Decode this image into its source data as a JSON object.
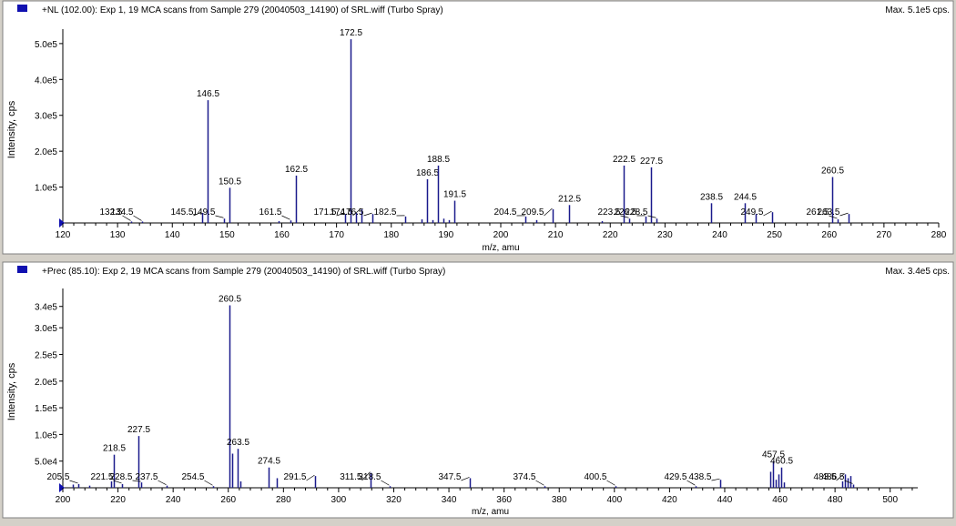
{
  "panels": [
    {
      "title": "+NL (102.00): Exp 1, 19 MCA scans from Sample 279 (20040503_14190) of SRL.wiff (Turbo Spray)",
      "max_label": "Max. 5.1e5 cps."
    },
    {
      "title": "+Prec (85.10): Exp 2, 19 MCA scans from Sample 279 (20040503_14190) of SRL.wiff (Turbo Spray)",
      "max_label": "Max. 3.4e5 cps."
    }
  ],
  "colors": {
    "bar": "#1a1a8c",
    "frame_bg": "#ffffff",
    "window_bg": "#d4d0c8",
    "legend_marker": "#1010b0"
  },
  "chart_data": [
    {
      "type": "bar",
      "title": "+NL (102.00): Exp 1, 19 MCA scans from Sample 279 (20040503_14190) of SRL.wiff (Turbo Spray)",
      "xlabel": "m/z, amu",
      "ylabel": "Intensity, cps",
      "xlim": [
        120,
        280
      ],
      "ylim": [
        0,
        520000
      ],
      "x_ticks": [
        120,
        130,
        140,
        150,
        160,
        170,
        180,
        190,
        200,
        210,
        220,
        230,
        240,
        250,
        260,
        270,
        280
      ],
      "y_ticks": [
        {
          "value": 100000,
          "label": "1.0e5"
        },
        {
          "value": 200000,
          "label": "2.0e5"
        },
        {
          "value": 300000,
          "label": "3.0e5"
        },
        {
          "value": 400000,
          "label": "4.0e5"
        },
        {
          "value": 500000,
          "label": "5.0e5"
        }
      ],
      "peaks": [
        {
          "x": 132.5,
          "y": 4000,
          "label": "132.5"
        },
        {
          "x": 134.5,
          "y": 4000,
          "label": "134.5"
        },
        {
          "x": 145.5,
          "y": 28000,
          "label": "145.5"
        },
        {
          "x": 146.5,
          "y": 342000,
          "label": "146.5"
        },
        {
          "x": 149.5,
          "y": 12000,
          "label": "149.5"
        },
        {
          "x": 150.5,
          "y": 98000,
          "label": "150.5"
        },
        {
          "x": 159.5,
          "y": 5000,
          "label": ""
        },
        {
          "x": 161.5,
          "y": 7000,
          "label": "161.5"
        },
        {
          "x": 162.5,
          "y": 132000,
          "label": "162.5"
        },
        {
          "x": 171.5,
          "y": 25000,
          "label": "171.5"
        },
        {
          "x": 172.5,
          "y": 512000,
          "label": "172.5"
        },
        {
          "x": 173.5,
          "y": 28000,
          "label": ""
        },
        {
          "x": 174.5,
          "y": 38000,
          "label": "174.5"
        },
        {
          "x": 176.5,
          "y": 25000,
          "label": "176.5"
        },
        {
          "x": 182.5,
          "y": 18000,
          "label": "182.5"
        },
        {
          "x": 185.5,
          "y": 10000,
          "label": ""
        },
        {
          "x": 186.5,
          "y": 122000,
          "label": "186.5"
        },
        {
          "x": 187.5,
          "y": 8000,
          "label": ""
        },
        {
          "x": 188.5,
          "y": 160000,
          "label": "188.5"
        },
        {
          "x": 189.5,
          "y": 12000,
          "label": ""
        },
        {
          "x": 190.5,
          "y": 8000,
          "label": ""
        },
        {
          "x": 191.5,
          "y": 62000,
          "label": "191.5"
        },
        {
          "x": 204.5,
          "y": 18000,
          "label": "204.5"
        },
        {
          "x": 206.5,
          "y": 8000,
          "label": ""
        },
        {
          "x": 209.5,
          "y": 38000,
          "label": "209.5"
        },
        {
          "x": 212.5,
          "y": 50000,
          "label": "212.5"
        },
        {
          "x": 218.5,
          "y": 5000,
          "label": ""
        },
        {
          "x": 222.5,
          "y": 160000,
          "label": "222.5"
        },
        {
          "x": 223.5,
          "y": 12000,
          "label": "223.5"
        },
        {
          "x": 226.5,
          "y": 18000,
          "label": "226.5"
        },
        {
          "x": 227.5,
          "y": 155000,
          "label": "227.5"
        },
        {
          "x": 228.5,
          "y": 12000,
          "label": "228.5"
        },
        {
          "x": 238.5,
          "y": 55000,
          "label": "238.5"
        },
        {
          "x": 244.5,
          "y": 55000,
          "label": "244.5"
        },
        {
          "x": 246.5,
          "y": 25000,
          "label": ""
        },
        {
          "x": 249.5,
          "y": 30000,
          "label": "249.5"
        },
        {
          "x": 260.5,
          "y": 128000,
          "label": "260.5"
        },
        {
          "x": 261.5,
          "y": 10000,
          "label": "261.5"
        },
        {
          "x": 263.5,
          "y": 25000,
          "label": "263.5"
        }
      ]
    },
    {
      "type": "bar",
      "title": "+Prec (85.10): Exp 2, 19 MCA scans from Sample 279 (20040503_14190) of SRL.wiff (Turbo Spray)",
      "xlabel": "m/z, amu",
      "ylabel": "Intensity, cps",
      "xlim": [
        200,
        510
      ],
      "ylim": [
        0,
        360000
      ],
      "x_ticks": [
        200,
        220,
        240,
        260,
        280,
        300,
        320,
        340,
        360,
        380,
        400,
        420,
        440,
        460,
        480,
        500
      ],
      "y_ticks": [
        {
          "value": 50000,
          "label": "5.0e4"
        },
        {
          "value": 100000,
          "label": "1.0e5"
        },
        {
          "value": 150000,
          "label": "1.5e5"
        },
        {
          "value": 200000,
          "label": "2.0e5"
        },
        {
          "value": 250000,
          "label": "2.5e5"
        },
        {
          "value": 300000,
          "label": "3.0e5"
        },
        {
          "value": 340000,
          "label": "3.4e5"
        }
      ],
      "peaks": [
        {
          "x": 203.5,
          "y": 6000,
          "label": ""
        },
        {
          "x": 205.5,
          "y": 7000,
          "label": "205.5"
        },
        {
          "x": 209.5,
          "y": 4000,
          "label": ""
        },
        {
          "x": 217.5,
          "y": 12000,
          "label": ""
        },
        {
          "x": 218.5,
          "y": 62000,
          "label": "218.5"
        },
        {
          "x": 221.5,
          "y": 7000,
          "label": "221.5"
        },
        {
          "x": 227.5,
          "y": 97000,
          "label": "227.5"
        },
        {
          "x": 228.5,
          "y": 10000,
          "label": "228.5"
        },
        {
          "x": 237.5,
          "y": 4000,
          "label": "237.5"
        },
        {
          "x": 254.5,
          "y": 3000,
          "label": "254.5"
        },
        {
          "x": 260.5,
          "y": 342000,
          "label": "260.5"
        },
        {
          "x": 261.5,
          "y": 64000,
          "label": ""
        },
        {
          "x": 263.5,
          "y": 73000,
          "label": "263.5"
        },
        {
          "x": 264.5,
          "y": 12000,
          "label": ""
        },
        {
          "x": 274.5,
          "y": 38000,
          "label": "274.5"
        },
        {
          "x": 277.5,
          "y": 18000,
          "label": ""
        },
        {
          "x": 291.5,
          "y": 22000,
          "label": "291.5"
        },
        {
          "x": 311.5,
          "y": 28000,
          "label": "311.5"
        },
        {
          "x": 318.5,
          "y": 3000,
          "label": "318.5"
        },
        {
          "x": 347.5,
          "y": 18000,
          "label": "347.5"
        },
        {
          "x": 374.5,
          "y": 3000,
          "label": "374.5"
        },
        {
          "x": 400.5,
          "y": 3000,
          "label": "400.5"
        },
        {
          "x": 429.5,
          "y": 3000,
          "label": "429.5"
        },
        {
          "x": 438.5,
          "y": 15000,
          "label": "438.5"
        },
        {
          "x": 456.5,
          "y": 30000,
          "label": ""
        },
        {
          "x": 457.5,
          "y": 50000,
          "label": "457.5"
        },
        {
          "x": 458.5,
          "y": 15000,
          "label": ""
        },
        {
          "x": 459.5,
          "y": 25000,
          "label": ""
        },
        {
          "x": 460.5,
          "y": 38000,
          "label": "460.5"
        },
        {
          "x": 461.5,
          "y": 10000,
          "label": ""
        },
        {
          "x": 482.5,
          "y": 12000,
          "label": ""
        },
        {
          "x": 483.5,
          "y": 25000,
          "label": "483.5"
        },
        {
          "x": 484.5,
          "y": 18000,
          "label": ""
        },
        {
          "x": 485.5,
          "y": 22000,
          "label": ""
        },
        {
          "x": 486.5,
          "y": 6000,
          "label": "486.5"
        }
      ]
    }
  ]
}
